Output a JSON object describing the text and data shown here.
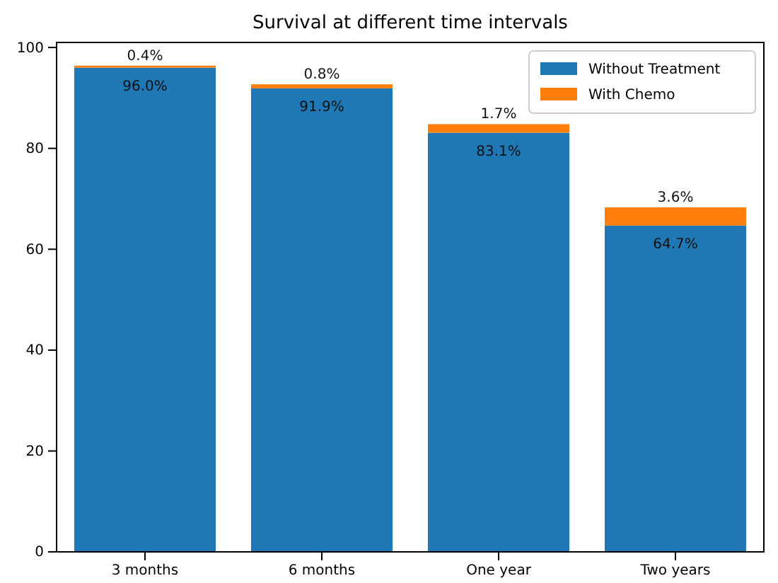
{
  "chart_data": {
    "type": "bar",
    "title": "Survival at different time intervals",
    "categories": [
      "3 months",
      "6 months",
      "One year",
      "Two years"
    ],
    "stacked": true,
    "series": [
      {
        "name": "Without Treatment",
        "color": "#1f77b4",
        "values": [
          96.0,
          91.9,
          83.1,
          64.7
        ],
        "value_labels": [
          "96.0%",
          "91.9%",
          "83.1%",
          "64.7%"
        ]
      },
      {
        "name": "With Chemo",
        "color": "#ff7f0e",
        "values": [
          0.4,
          0.8,
          1.7,
          3.6
        ],
        "value_labels": [
          "0.4%",
          "0.8%",
          "1.7%",
          "3.6%"
        ]
      }
    ],
    "ylim": [
      0,
      101
    ],
    "yticks": [
      0,
      20,
      40,
      60,
      80,
      100
    ],
    "legend": "top right"
  }
}
